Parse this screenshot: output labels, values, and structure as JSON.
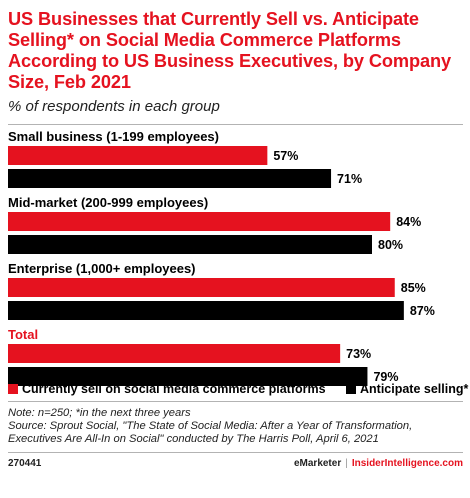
{
  "title": "US Businesses that Currently Sell vs. Anticipate Selling* on Social Media Commerce Platforms According to US Business Executives, by Company Size, Feb 2021",
  "subtitle": "% of respondents in each group",
  "colors": {
    "red": "#e5121f",
    "black": "#000000",
    "accent": "#e5121f"
  },
  "chart_data": {
    "type": "bar",
    "orientation": "horizontal",
    "categories": [
      "Small business (1-199 employees)",
      "Mid-market (200-999 employees)",
      "Enterprise (1,000+ employees)",
      "Total"
    ],
    "series": [
      {
        "name": "Currently sell on social media commerce platforms",
        "values": [
          57,
          84,
          85,
          73
        ],
        "color": "#e5121f"
      },
      {
        "name": "Anticipate selling*",
        "values": [
          71,
          80,
          87,
          79
        ],
        "color": "#000000"
      }
    ],
    "value_suffix": "%",
    "xlim": [
      0,
      100
    ],
    "grid": false,
    "legend": "bottom"
  },
  "note": "Note: n=250; *in the next three years",
  "source": "Source: Sprout Social, \"The State of Social Media: After a Year of Transformation, Executives Are All-In on Social\" conducted by The Harris Poll, April 6, 2021",
  "footer": {
    "id": "270441",
    "brand": "eMarketer",
    "separator": "|",
    "site": "InsiderIntelligence.com"
  }
}
